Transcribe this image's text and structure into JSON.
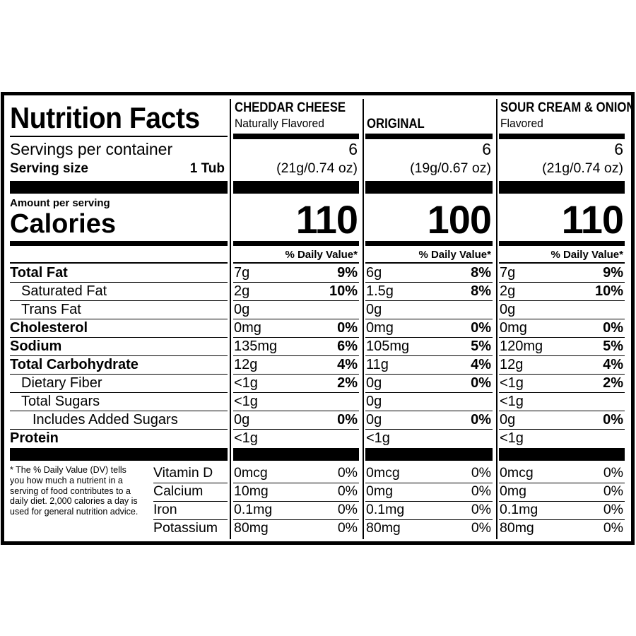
{
  "title": "Nutrition Facts",
  "servings_label": "Servings per container",
  "serving_size_label": "Serving size",
  "serving_size": "1 Tub",
  "amount_per_serving": "Amount per serving",
  "calories_label": "Calories",
  "nutrients": [
    {
      "label": "Total Fat",
      "bold": true,
      "indent": 0
    },
    {
      "label": "Saturated Fat",
      "bold": false,
      "indent": 1
    },
    {
      "label": "Trans Fat",
      "bold": false,
      "indent": 1
    },
    {
      "label": "Cholesterol",
      "bold": true,
      "indent": 0
    },
    {
      "label": "Sodium",
      "bold": true,
      "indent": 0
    },
    {
      "label": "Total Carbohydrate",
      "bold": true,
      "indent": 0
    },
    {
      "label": "Dietary Fiber",
      "bold": false,
      "indent": 1
    },
    {
      "label": "Total Sugars",
      "bold": false,
      "indent": 1
    },
    {
      "label": "Includes Added Sugars",
      "bold": false,
      "indent": 2
    },
    {
      "label": "Protein",
      "bold": true,
      "indent": 0
    }
  ],
  "footnote": "* The % Daily Value (DV) tells you how much a nutrient in a serving of food contributes to a daily diet. 2,000 calories a day is used for general nutrition advice.",
  "vitamins": [
    "Vitamin D",
    "Calcium",
    "Iron",
    "Potassium"
  ],
  "products": [
    {
      "name": "CHEDDAR CHEESE",
      "subtitle": "Naturally Flavored",
      "servings": 6,
      "serving_size": "(21g/0.74 oz)",
      "calories": 110,
      "dv_header": "% Daily Value*",
      "nutrients": [
        [
          "7g",
          "9%"
        ],
        [
          "2g",
          "10%"
        ],
        [
          "0g"
        ],
        [
          "0mg",
          "0%"
        ],
        [
          "135mg",
          "6%"
        ],
        [
          "12g",
          "4%"
        ],
        [
          "<1g",
          "2%"
        ],
        [
          "<1g"
        ],
        [
          "0g",
          "0%"
        ],
        [
          "<1g"
        ]
      ],
      "vitamins": [
        [
          "0mcg",
          "0%"
        ],
        [
          "10mg",
          "0%"
        ],
        [
          "0.1mg",
          "0%"
        ],
        [
          "80mg",
          "0%"
        ]
      ]
    },
    {
      "name": "ORIGINAL",
      "servings": 6,
      "serving_size": "(19g/0.67 oz)",
      "calories": 100,
      "dv_header": "% Daily Value*",
      "nutrients": [
        [
          "6g",
          "8%"
        ],
        [
          "1.5g",
          "8%"
        ],
        [
          "0g"
        ],
        [
          "0mg",
          "0%"
        ],
        [
          "105mg",
          "5%"
        ],
        [
          "11g",
          "4%"
        ],
        [
          "0g",
          "0%"
        ],
        [
          "0g"
        ],
        [
          "0g",
          "0%"
        ],
        [
          "<1g"
        ]
      ],
      "vitamins": [
        [
          "0mcg",
          "0%"
        ],
        [
          "0mg",
          "0%"
        ],
        [
          "0.1mg",
          "0%"
        ],
        [
          "80mg",
          "0%"
        ]
      ]
    },
    {
      "name": "SOUR CREAM & ONION",
      "subtitle": "Flavored",
      "servings": 6,
      "serving_size": "(21g/0.74 oz)",
      "calories": 110,
      "dv_header": "% Daily Value*",
      "nutrients": [
        [
          "7g",
          "9%"
        ],
        [
          "2g",
          "10%"
        ],
        [
          "0g"
        ],
        [
          "0mg",
          "0%"
        ],
        [
          "120mg",
          "5%"
        ],
        [
          "12g",
          "4%"
        ],
        [
          "<1g",
          "2%"
        ],
        [
          "<1g"
        ],
        [
          "0g",
          "0%"
        ],
        [
          "<1g"
        ]
      ],
      "vitamins": [
        [
          "0mcg",
          "0%"
        ],
        [
          "0mg",
          "0%"
        ],
        [
          "0.1mg",
          "0%"
        ],
        [
          "80mg",
          "0%"
        ]
      ]
    }
  ]
}
